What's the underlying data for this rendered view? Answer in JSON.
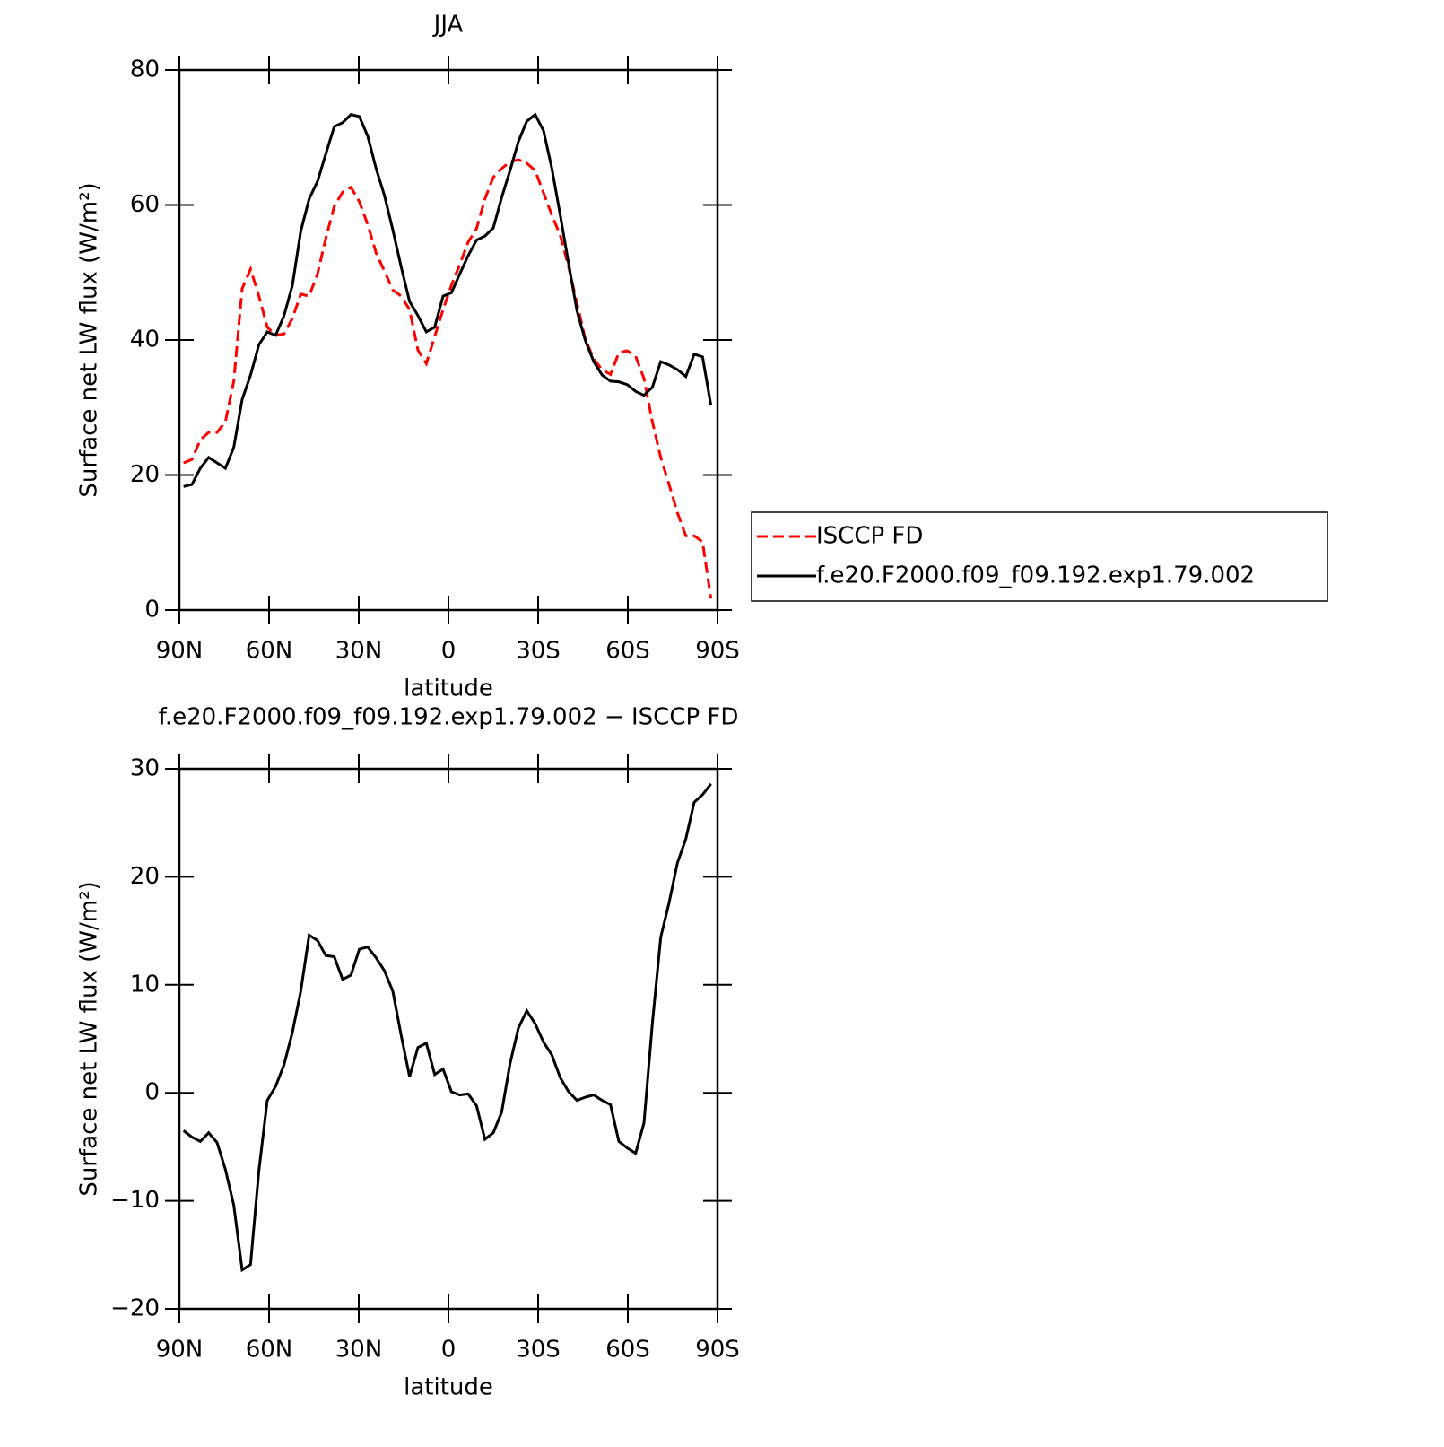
{
  "chart_data": [
    {
      "type": "line",
      "title": "JJA",
      "xlabel": "latitude",
      "ylabel": "Surface net LW flux (W/m²)",
      "x": [
        88.6,
        85.8,
        83.0,
        80.2,
        77.4,
        74.6,
        71.8,
        69.0,
        66.2,
        63.4,
        60.6,
        57.8,
        55.0,
        52.2,
        49.4,
        46.6,
        43.8,
        41.0,
        38.2,
        35.4,
        32.6,
        29.8,
        27.0,
        24.2,
        21.4,
        18.6,
        15.8,
        13.0,
        10.2,
        7.4,
        4.6,
        1.8,
        -1.0,
        -3.8,
        -6.6,
        -9.4,
        -12.2,
        -15.0,
        -17.8,
        -20.6,
        -23.4,
        -26.2,
        -29.0,
        -31.8,
        -34.6,
        -37.4,
        -40.2,
        -43.0,
        -45.8,
        -48.6,
        -51.4,
        -54.2,
        -57.0,
        -59.8,
        -62.6,
        -65.4,
        -68.2,
        -71.0,
        -73.8,
        -76.6,
        -79.4,
        -82.2,
        -85.0,
        -87.8
      ],
      "series": [
        {
          "name": "ISCCP FD",
          "color": "#ff0000",
          "dash": "dashed",
          "values": [
            21.8,
            22.3,
            25.2,
            26.3,
            26.3,
            27.9,
            33.9,
            47.6,
            50.5,
            46.5,
            41.9,
            40.7,
            40.9,
            43.2,
            46.8,
            46.5,
            49.8,
            55.1,
            59.8,
            61.9,
            62.6,
            60.5,
            57.1,
            52.9,
            50.2,
            47.4,
            46.5,
            44.5,
            38.5,
            36.5,
            40.5,
            44.5,
            48.1,
            51.2,
            54.5,
            56.5,
            60.9,
            64.1,
            65.4,
            66.4,
            66.7,
            66.2,
            65.1,
            61.8,
            58.5,
            55.5,
            50.8,
            45.4,
            40.1,
            37.2,
            35.6,
            34.9,
            38.1,
            38.4,
            37.6,
            34.3,
            27.9,
            22.6,
            18.6,
            14.4,
            11.0,
            11.0,
            10.1,
            1.7
          ]
        },
        {
          "name": "f.e20.F2000.f09_f09.192.exp1.79.002",
          "color": "#000000",
          "dash": "solid",
          "values": [
            18.3,
            18.6,
            21.0,
            22.6,
            21.8,
            21.0,
            24.1,
            31.2,
            34.8,
            39.3,
            41.2,
            40.7,
            43.6,
            48.1,
            56.1,
            60.9,
            63.5,
            67.6,
            71.6,
            72.2,
            73.4,
            73.1,
            70.2,
            65.4,
            61.4,
            56.3,
            50.8,
            45.7,
            43.6,
            41.2,
            41.9,
            46.5,
            47.0,
            49.8,
            52.5,
            54.8,
            55.4,
            56.6,
            61.1,
            65.1,
            69.4,
            72.4,
            73.4,
            71.0,
            65.4,
            58.5,
            51.3,
            44.3,
            39.9,
            36.8,
            34.8,
            33.9,
            33.8,
            33.4,
            32.4,
            31.8,
            33.0,
            36.8,
            36.3,
            35.6,
            34.6,
            37.9,
            37.5,
            30.3
          ]
        }
      ],
      "xlim": [
        90,
        -90
      ],
      "xticks": [
        {
          "value": 90,
          "label": "90N"
        },
        {
          "value": 60,
          "label": "60N"
        },
        {
          "value": 30,
          "label": "30N"
        },
        0,
        {
          "value": -30,
          "label": "30S"
        },
        {
          "value": -60,
          "label": "60S"
        },
        {
          "value": -90,
          "label": "90S"
        }
      ],
      "ylim": [
        0,
        80
      ],
      "yticks": [
        0,
        20,
        40,
        60,
        80
      ],
      "legend": "right"
    },
    {
      "type": "line",
      "title": "f.e20.F2000.f09_f09.192.exp1.79.002 − ISCCP FD",
      "xlabel": "latitude",
      "ylabel": "Surface net LW flux (W/m²)",
      "x": [
        88.6,
        85.8,
        83.0,
        80.2,
        77.4,
        74.6,
        71.8,
        69.0,
        66.2,
        63.4,
        60.6,
        57.8,
        55.0,
        52.2,
        49.4,
        46.6,
        43.8,
        41.0,
        38.2,
        35.4,
        32.6,
        29.8,
        27.0,
        24.2,
        21.4,
        18.6,
        15.8,
        13.0,
        10.2,
        7.4,
        4.6,
        1.8,
        -1.0,
        -3.8,
        -6.6,
        -9.4,
        -12.2,
        -15.0,
        -17.8,
        -20.6,
        -23.4,
        -26.2,
        -29.0,
        -31.8,
        -34.6,
        -37.4,
        -40.2,
        -43.0,
        -45.8,
        -48.6,
        -51.4,
        -54.2,
        -57.0,
        -59.8,
        -62.6,
        -65.4,
        -68.2,
        -71.0,
        -73.8,
        -76.6,
        -79.4,
        -82.2,
        -85.0,
        -87.8
      ],
      "series": [
        {
          "color": "#000000",
          "dash": "solid",
          "values": [
            -3.5,
            -4.1,
            -4.5,
            -3.7,
            -4.6,
            -7.1,
            -10.4,
            -16.4,
            -15.9,
            -7.2,
            -0.7,
            0.6,
            2.6,
            5.6,
            9.4,
            14.6,
            14.1,
            12.7,
            12.6,
            10.5,
            10.9,
            13.3,
            13.5,
            12.5,
            11.3,
            9.4,
            5.3,
            1.5,
            4.2,
            4.6,
            1.7,
            2.2,
            0.1,
            -0.2,
            -0.1,
            -1.2,
            -4.3,
            -3.7,
            -1.8,
            2.7,
            6.0,
            7.6,
            6.4,
            4.7,
            3.5,
            1.4,
            0.1,
            -0.7,
            -0.4,
            -0.2,
            -0.7,
            -1.1,
            -4.5,
            -5.1,
            -5.6,
            -2.8,
            6.4,
            14.4,
            17.6,
            21.3,
            23.5,
            26.9,
            27.6,
            28.6
          ]
        }
      ],
      "xlim": [
        90,
        -90
      ],
      "xticks": [
        {
          "value": 90,
          "label": "90N"
        },
        {
          "value": 60,
          "label": "60N"
        },
        {
          "value": 30,
          "label": "30N"
        },
        0,
        {
          "value": -30,
          "label": "30S"
        },
        {
          "value": -60,
          "label": "60S"
        },
        {
          "value": -90,
          "label": "90S"
        }
      ],
      "ylim": [
        -20,
        30
      ],
      "yticks": [
        {
          "value": -20,
          "label": "−20"
        },
        {
          "value": -10,
          "label": "−10"
        },
        0,
        10,
        20,
        30
      ]
    }
  ]
}
